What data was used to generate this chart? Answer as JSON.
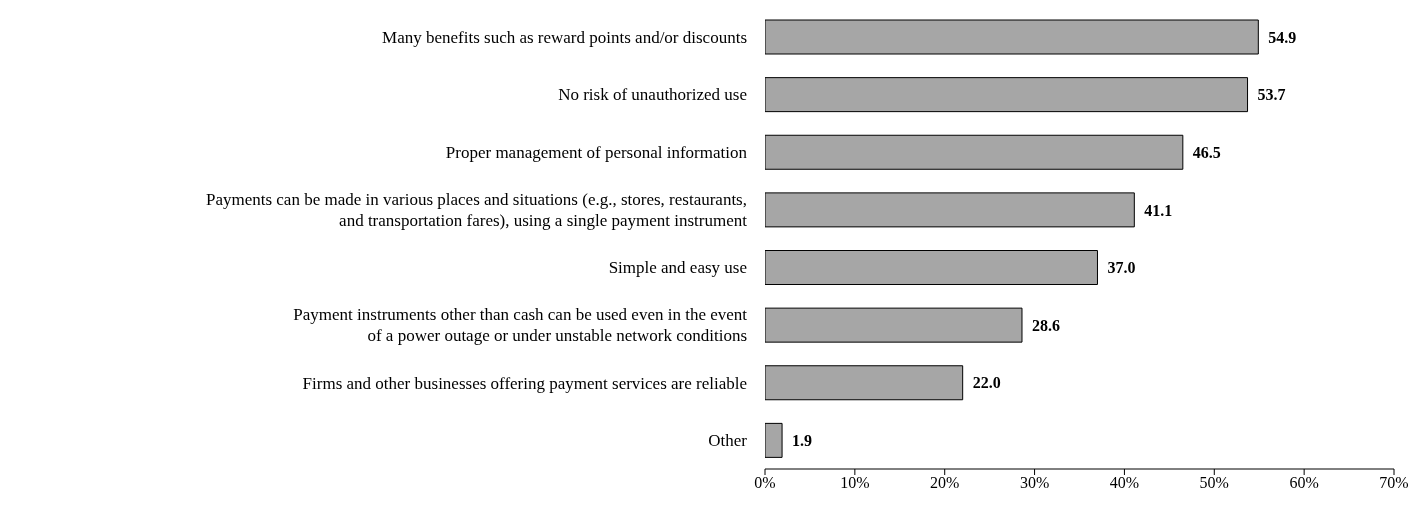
{
  "chart_data": {
    "type": "bar",
    "orientation": "horizontal",
    "categories": [
      "Many benefits such as reward points and/or discounts",
      "No risk of unauthorized use",
      "Proper management of personal information",
      "Payments can be made in various places and situations (e.g., stores, restaurants,\nand transportation fares), using a single payment instrument",
      "Simple and easy use",
      "Payment instruments other than cash can be used even in the event\nof a power outage or under unstable network conditions",
      "Firms and other businesses offering payment services are reliable",
      "Other"
    ],
    "values": [
      54.9,
      53.7,
      46.5,
      41.1,
      37.0,
      28.6,
      22.0,
      1.9
    ],
    "color": "#a6a6a6",
    "value_labels": [
      "54.9",
      "53.7",
      "46.5",
      "41.1",
      "37.0",
      "28.6",
      "22.0",
      "1.9"
    ],
    "xlim": [
      0,
      70
    ],
    "xticks": [
      {
        "value": 0,
        "label": "0%"
      },
      {
        "value": 10,
        "label": "10%"
      },
      {
        "value": 20,
        "label": "20%"
      },
      {
        "value": 30,
        "label": "30%"
      },
      {
        "value": 40,
        "label": "40%"
      },
      {
        "value": 50,
        "label": "50%"
      },
      {
        "value": 60,
        "label": "60%"
      },
      {
        "value": 70,
        "label": "70%"
      }
    ],
    "grid": false,
    "legend": false
  }
}
